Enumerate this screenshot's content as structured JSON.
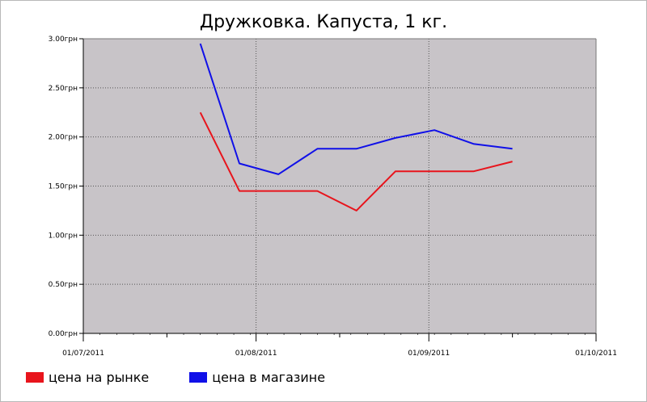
{
  "chart_data": {
    "type": "line",
    "title": "Дружковка. Капуста, 1 кг.",
    "xlabel": "",
    "ylabel": "",
    "x_ticks": [
      "01/07/2011",
      "01/08/2011",
      "01/09/2011",
      "01/10/2011"
    ],
    "y_ticks": [
      "0.00грн",
      "0.50грн",
      "1.00грн",
      "1.50грн",
      "2.00грн",
      "2.50грн",
      "3.00грн"
    ],
    "ylim": [
      0,
      3.0
    ],
    "xlim": [
      "2011-07-01",
      "2011-10-01"
    ],
    "grid": true,
    "legend_position": "bottom-left",
    "background_color": "#c8c4c8",
    "series": [
      {
        "name": "цена на рынке",
        "color": "#e8141c",
        "points": [
          {
            "x": "2011-07-22",
            "y": 2.25
          },
          {
            "x": "2011-07-29",
            "y": 1.45
          },
          {
            "x": "2011-08-05",
            "y": 1.45
          },
          {
            "x": "2011-08-12",
            "y": 1.45
          },
          {
            "x": "2011-08-19",
            "y": 1.25
          },
          {
            "x": "2011-08-26",
            "y": 1.65
          },
          {
            "x": "2011-09-02",
            "y": 1.65
          },
          {
            "x": "2011-09-09",
            "y": 1.65
          },
          {
            "x": "2011-09-16",
            "y": 1.75
          }
        ]
      },
      {
        "name": "цена в магазине",
        "color": "#1010e8",
        "points": [
          {
            "x": "2011-07-22",
            "y": 2.95
          },
          {
            "x": "2011-07-29",
            "y": 1.73
          },
          {
            "x": "2011-08-05",
            "y": 1.62
          },
          {
            "x": "2011-08-12",
            "y": 1.88
          },
          {
            "x": "2011-08-19",
            "y": 1.88
          },
          {
            "x": "2011-08-26",
            "y": 1.99
          },
          {
            "x": "2011-09-02",
            "y": 2.07
          },
          {
            "x": "2011-09-09",
            "y": 1.93
          },
          {
            "x": "2011-09-16",
            "y": 1.88
          }
        ]
      }
    ]
  }
}
